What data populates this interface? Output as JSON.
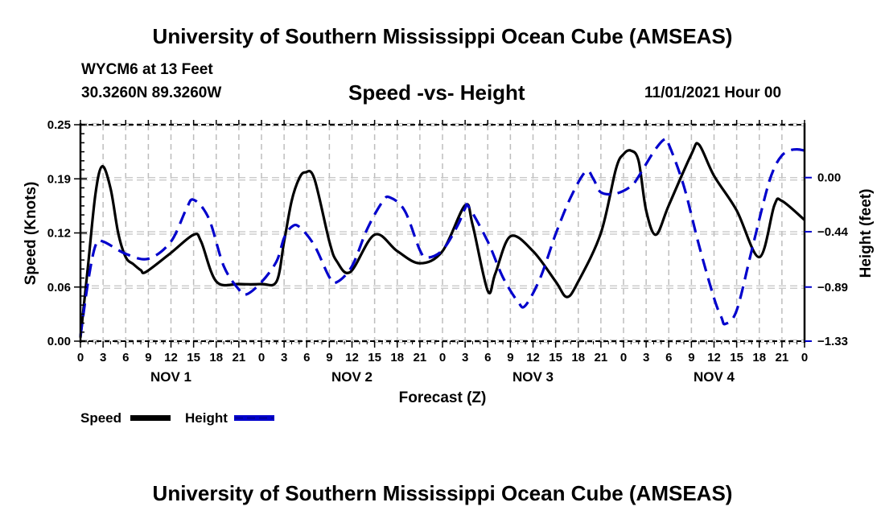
{
  "header": {
    "main_title": "University of Southern Mississippi Ocean Cube (AMSEAS)",
    "station": "WYCM6 at 13 Feet",
    "coords": "30.3260N  89.3260W",
    "subtitle": "Speed -vs- Height",
    "run_time": "11/01/2021 Hour 00"
  },
  "footer": {
    "bottom_title": "University of Southern Mississippi Ocean Cube (AMSEAS)"
  },
  "chart_data": {
    "type": "line",
    "title": "Speed -vs- Height",
    "xlabel": "Forecast (Z)",
    "ylabel": "Speed (Knots)",
    "y2label": "Height (feet)",
    "xlim": [
      0,
      96
    ],
    "ylim": [
      0.0,
      0.25
    ],
    "y2lim": [
      -1.33,
      0.43
    ],
    "grid": true,
    "legend_position": "bottom-left",
    "x_tick_labels": [
      "0",
      "3",
      "6",
      "9",
      "12",
      "15",
      "18",
      "21",
      "0",
      "3",
      "6",
      "9",
      "12",
      "15",
      "18",
      "21",
      "0",
      "3",
      "6",
      "9",
      "12",
      "15",
      "18",
      "21",
      "0",
      "3",
      "6",
      "9",
      "12",
      "15",
      "18",
      "21",
      "0"
    ],
    "x_tick_hours": [
      0,
      3,
      6,
      9,
      12,
      15,
      18,
      21,
      24,
      27,
      30,
      33,
      36,
      39,
      42,
      45,
      48,
      51,
      54,
      57,
      60,
      63,
      66,
      69,
      72,
      75,
      78,
      81,
      84,
      87,
      90,
      93,
      96
    ],
    "day_labels": [
      {
        "label": "NOV 1",
        "hour": 12
      },
      {
        "label": "NOV 2",
        "hour": 36
      },
      {
        "label": "NOV 3",
        "hour": 60
      },
      {
        "label": "NOV 4",
        "hour": 84
      }
    ],
    "y_ticks": [
      {
        "value": 0.0,
        "label": "0.00"
      },
      {
        "value": 0.0625,
        "label": "0.06"
      },
      {
        "value": 0.125,
        "label": "0.12"
      },
      {
        "value": 0.1875,
        "label": "0.19"
      },
      {
        "value": 0.25,
        "label": "0.25"
      }
    ],
    "y2_ticks": [
      {
        "value": 0.0,
        "label": "0.00"
      },
      {
        "value": -0.44,
        "label": "−0.44"
      },
      {
        "value": -0.89,
        "label": "−0.89"
      },
      {
        "value": -1.33,
        "label": "−1.33"
      }
    ],
    "series": [
      {
        "name": "Speed",
        "axis": "left",
        "color": "#000000",
        "style": "solid",
        "x": [
          0,
          1,
          2,
          2.9,
          4,
          5,
          6,
          7,
          8,
          8.7,
          12,
          15,
          16,
          18,
          21,
          24,
          26,
          27,
          28,
          29,
          29.8,
          31,
          33,
          34,
          35.8,
          39,
          42,
          45,
          48,
          51,
          52,
          54,
          55,
          57,
          60,
          63,
          64.5,
          66,
          69,
          71,
          72,
          73,
          74,
          75,
          76.3,
          78,
          81,
          82,
          84,
          87,
          90,
          92,
          93,
          96
        ],
        "values": [
          0.004,
          0.087,
          0.171,
          0.202,
          0.176,
          0.125,
          0.097,
          0.089,
          0.082,
          0.08,
          0.102,
          0.123,
          0.115,
          0.069,
          0.066,
          0.066,
          0.069,
          0.115,
          0.162,
          0.188,
          0.195,
          0.188,
          0.115,
          0.092,
          0.08,
          0.123,
          0.104,
          0.09,
          0.104,
          0.157,
          0.134,
          0.058,
          0.078,
          0.121,
          0.104,
          0.069,
          0.051,
          0.069,
          0.125,
          0.199,
          0.216,
          0.22,
          0.208,
          0.151,
          0.123,
          0.157,
          0.216,
          0.227,
          0.191,
          0.151,
          0.097,
          0.157,
          0.162,
          0.14
        ]
      },
      {
        "name": "Height",
        "axis": "right",
        "color": "#0000cc",
        "style": "dashed",
        "x": [
          0,
          1,
          2,
          3,
          6,
          9,
          12,
          14,
          15,
          17,
          19,
          21,
          22,
          24,
          26,
          27,
          28,
          29,
          31,
          33,
          34,
          36,
          38,
          40,
          41,
          43,
          45,
          46,
          48,
          50,
          51,
          51.5,
          54,
          56,
          58,
          59,
          61,
          63,
          65,
          67,
          68,
          69,
          71,
          73,
          74,
          76,
          77.4,
          78,
          80,
          82,
          84,
          85,
          85.5,
          87,
          89,
          91,
          92,
          93,
          94,
          95,
          96
        ],
        "values": [
          -1.29,
          -0.85,
          -0.55,
          -0.52,
          -0.62,
          -0.66,
          -0.52,
          -0.26,
          -0.18,
          -0.33,
          -0.72,
          -0.91,
          -0.95,
          -0.85,
          -0.68,
          -0.49,
          -0.4,
          -0.4,
          -0.55,
          -0.81,
          -0.85,
          -0.72,
          -0.42,
          -0.2,
          -0.16,
          -0.27,
          -0.59,
          -0.65,
          -0.59,
          -0.39,
          -0.25,
          -0.24,
          -0.52,
          -0.81,
          -1.01,
          -1.04,
          -0.81,
          -0.46,
          -0.16,
          0.05,
          -0.01,
          -0.12,
          -0.13,
          -0.07,
          0.01,
          0.21,
          0.31,
          0.27,
          -0.07,
          -0.55,
          -0.98,
          -1.14,
          -1.19,
          -1.08,
          -0.59,
          -0.1,
          0.08,
          0.18,
          0.22,
          0.23,
          0.22
        ]
      }
    ],
    "legend": [
      {
        "label": "Speed",
        "color": "#000000",
        "style": "solid"
      },
      {
        "label": "Height",
        "color": "#0000cc",
        "style": "dashed"
      }
    ]
  }
}
